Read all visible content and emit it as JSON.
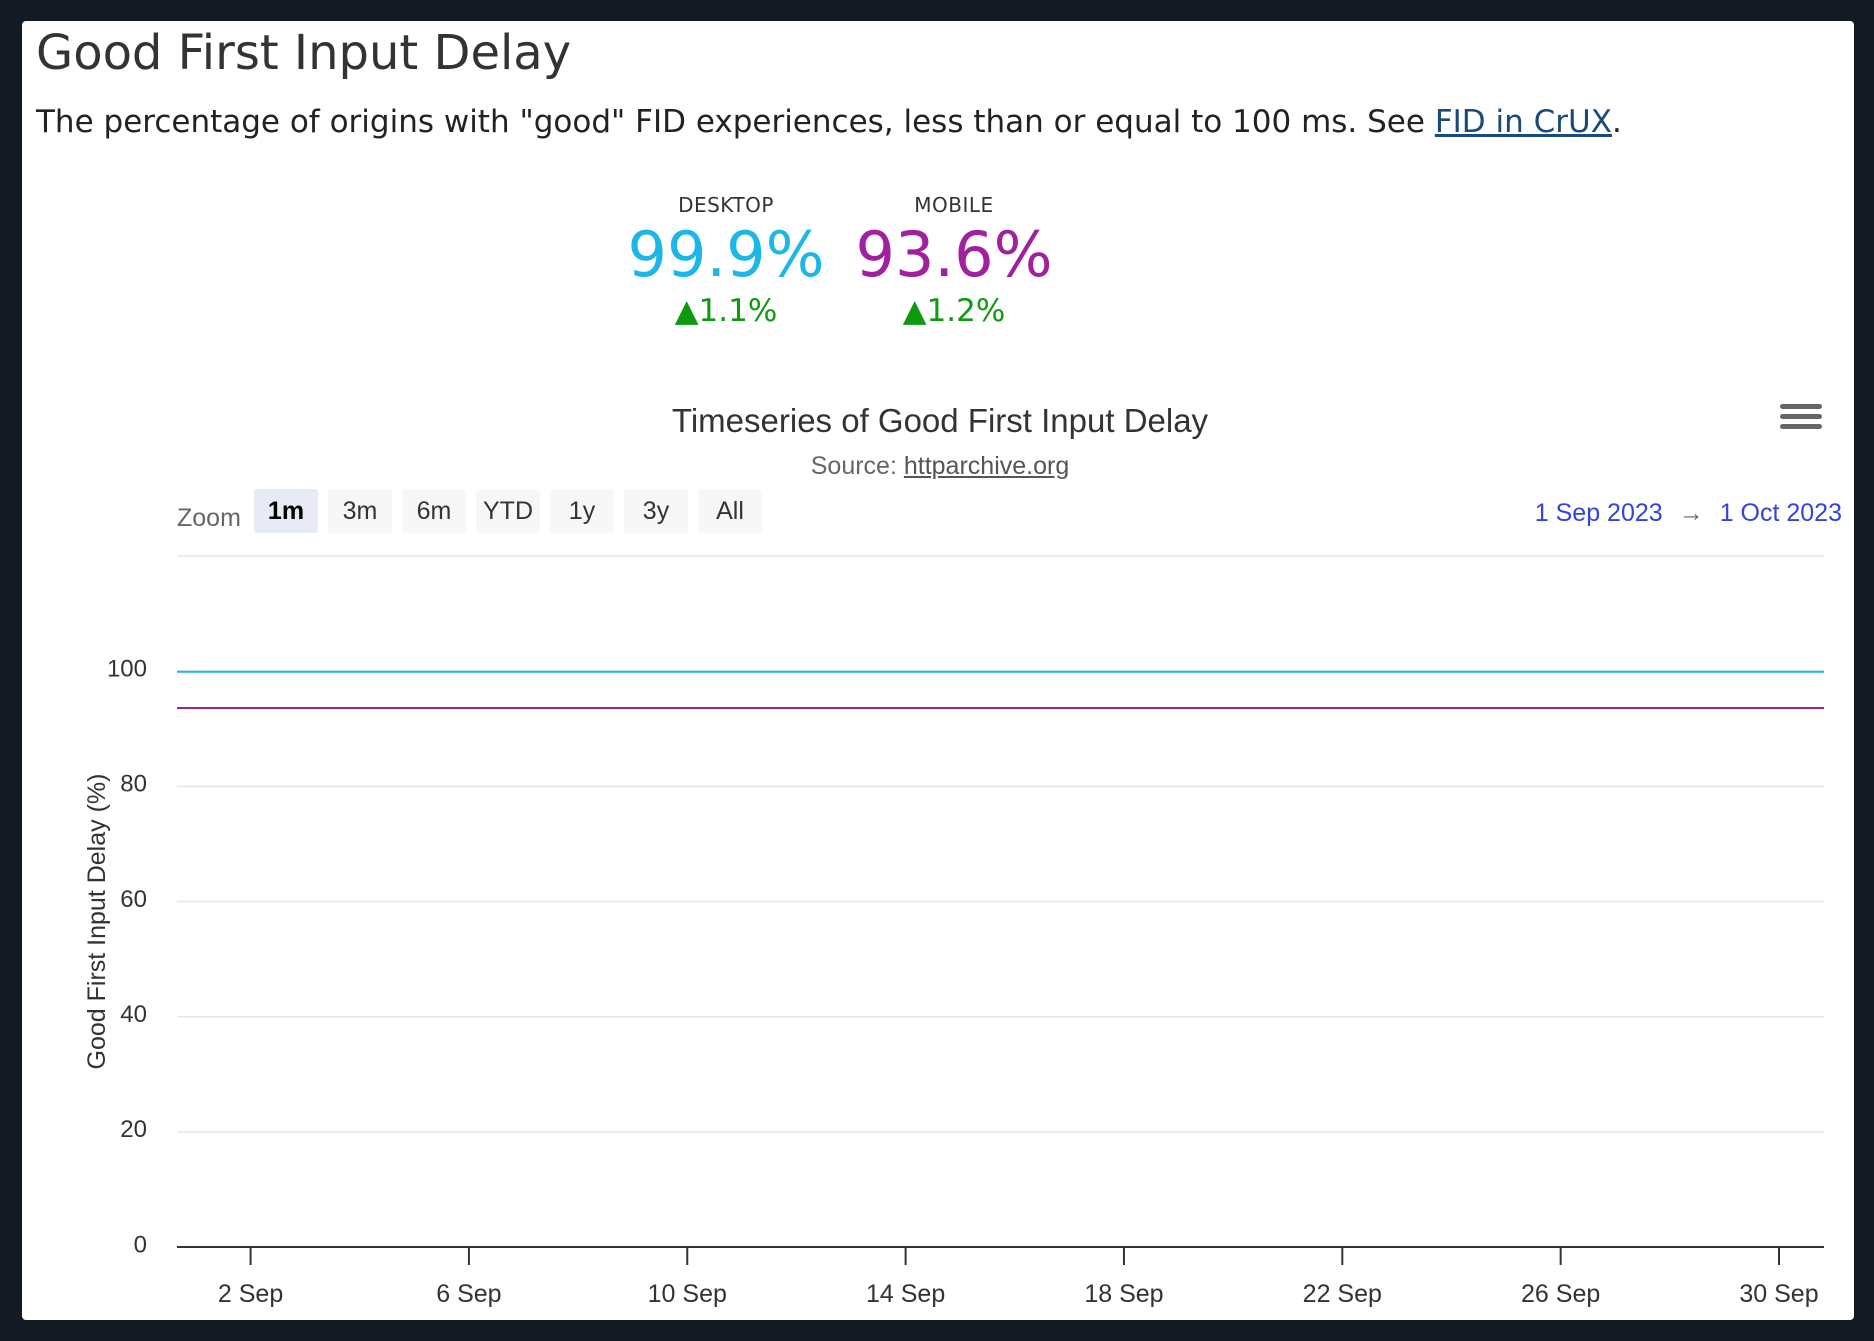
{
  "section": {
    "title": "Good First Input Delay",
    "description_prefix": "The percentage of origins with \"good\" FID experiences, less than or equal to 100 ms. See ",
    "link_text": "FID in CrUX",
    "description_suffix": "."
  },
  "metrics": {
    "desktop": {
      "label": "DESKTOP",
      "value": "99.9%",
      "change": "▲1.1%",
      "color": "#1ab7e8"
    },
    "mobile": {
      "label": "MOBILE",
      "value": "93.6%",
      "change": "▲1.2%",
      "color": "#a0209e"
    }
  },
  "toolbar": {
    "zoom_label": "Zoom",
    "zoom_options": [
      "1m",
      "3m",
      "6m",
      "YTD",
      "1y",
      "3y",
      "All"
    ],
    "active_zoom": "1m",
    "range_start": "1 Sep 2023",
    "range_arrow": "→",
    "range_end": "1 Oct 2023"
  },
  "chart_data": {
    "type": "line",
    "title": "Timeseries of Good First Input Delay",
    "subtitle_prefix": "Source: ",
    "subtitle_link": "httparchive.org",
    "ylabel": "Good First Input Delay (%)",
    "xlabel": "",
    "ylim": [
      0,
      120
    ],
    "yticks": [
      0,
      20,
      40,
      60,
      80,
      100
    ],
    "x_range": [
      "2023-09-01",
      "2023-09-30"
    ],
    "xtick_dates": [
      "2023-09-02",
      "2023-09-06",
      "2023-09-10",
      "2023-09-14",
      "2023-09-18",
      "2023-09-22",
      "2023-09-26",
      "2023-09-30"
    ],
    "xtick_labels": [
      "2 Sep",
      "6 Sep",
      "10 Sep",
      "14 Sep",
      "18 Sep",
      "22 Sep",
      "26 Sep",
      "30 Sep"
    ],
    "grid": true,
    "series": [
      {
        "name": "DESKTOP",
        "color": "#1ab7e8",
        "x": [
          "2023-09-01",
          "2023-09-30"
        ],
        "y": [
          99.9,
          99.9
        ]
      },
      {
        "name": "MOBILE",
        "color": "#a0209e",
        "x": [
          "2023-09-01",
          "2023-09-30"
        ],
        "y": [
          93.6,
          93.6
        ]
      }
    ]
  }
}
